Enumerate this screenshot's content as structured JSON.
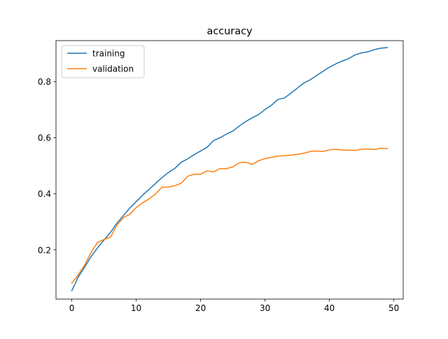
{
  "chart_data": {
    "type": "line",
    "title": "accuracy",
    "xlabel": "",
    "ylabel": "",
    "xlim": [
      -2.45,
      51.45
    ],
    "ylim": [
      0.0244,
      0.9468
    ],
    "xticks": [
      0,
      10,
      20,
      30,
      40,
      50
    ],
    "yticks": [
      0.2,
      0.4,
      0.6,
      0.8
    ],
    "grid": false,
    "legend": {
      "position": "top-left"
    },
    "x": [
      0,
      1,
      2,
      3,
      4,
      5,
      6,
      7,
      8,
      9,
      10,
      11,
      12,
      13,
      14,
      15,
      16,
      17,
      18,
      19,
      20,
      21,
      22,
      23,
      24,
      25,
      26,
      27,
      28,
      29,
      30,
      31,
      32,
      33,
      34,
      35,
      36,
      37,
      38,
      39,
      40,
      41,
      42,
      43,
      44,
      45,
      46,
      47,
      48,
      49
    ],
    "series": [
      {
        "name": "training",
        "color": "#1f77b4",
        "values": [
          0.054,
          0.103,
          0.139,
          0.176,
          0.207,
          0.235,
          0.262,
          0.295,
          0.322,
          0.349,
          0.372,
          0.395,
          0.416,
          0.437,
          0.458,
          0.476,
          0.491,
          0.513,
          0.525,
          0.54,
          0.553,
          0.566,
          0.59,
          0.6,
          0.613,
          0.624,
          0.642,
          0.658,
          0.671,
          0.683,
          0.701,
          0.716,
          0.737,
          0.742,
          0.759,
          0.777,
          0.795,
          0.807,
          0.822,
          0.837,
          0.852,
          0.864,
          0.874,
          0.883,
          0.896,
          0.903,
          0.907,
          0.915,
          0.92,
          0.922
        ]
      },
      {
        "name": "validation",
        "color": "#ff7f0e",
        "values": [
          0.081,
          0.111,
          0.146,
          0.191,
          0.227,
          0.237,
          0.245,
          0.288,
          0.315,
          0.327,
          0.351,
          0.368,
          0.382,
          0.399,
          0.424,
          0.424,
          0.429,
          0.438,
          0.463,
          0.47,
          0.47,
          0.482,
          0.478,
          0.49,
          0.49,
          0.496,
          0.511,
          0.513,
          0.505,
          0.518,
          0.526,
          0.53,
          0.535,
          0.536,
          0.538,
          0.541,
          0.545,
          0.551,
          0.553,
          0.551,
          0.557,
          0.559,
          0.556,
          0.556,
          0.555,
          0.559,
          0.56,
          0.558,
          0.563,
          0.561
        ]
      }
    ]
  }
}
